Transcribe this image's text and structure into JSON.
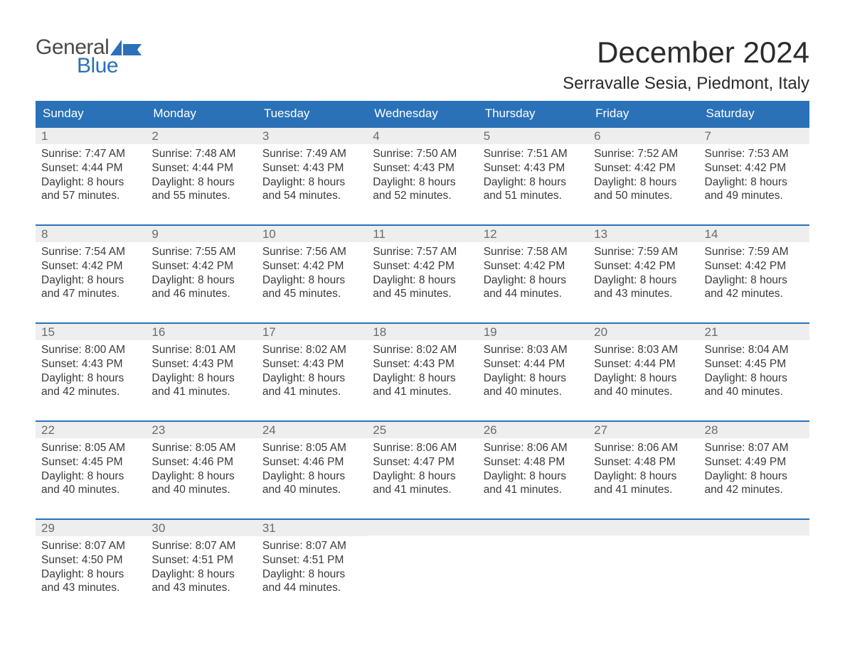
{
  "logo": {
    "text1": "General",
    "text2": "Blue",
    "accent": "#2a71b8",
    "gray": "#4a4a4a"
  },
  "title": "December 2024",
  "location": "Serravalle Sesia, Piedmont, Italy",
  "header_bg": "#2a71b8",
  "daynum_bg": "#eeeeee",
  "dow": [
    "Sunday",
    "Monday",
    "Tuesday",
    "Wednesday",
    "Thursday",
    "Friday",
    "Saturday"
  ],
  "weeks": [
    [
      {
        "n": "1",
        "sr": "7:47 AM",
        "ss": "4:44 PM",
        "dl": "8 hours and 57 minutes."
      },
      {
        "n": "2",
        "sr": "7:48 AM",
        "ss": "4:44 PM",
        "dl": "8 hours and 55 minutes."
      },
      {
        "n": "3",
        "sr": "7:49 AM",
        "ss": "4:43 PM",
        "dl": "8 hours and 54 minutes."
      },
      {
        "n": "4",
        "sr": "7:50 AM",
        "ss": "4:43 PM",
        "dl": "8 hours and 52 minutes."
      },
      {
        "n": "5",
        "sr": "7:51 AM",
        "ss": "4:43 PM",
        "dl": "8 hours and 51 minutes."
      },
      {
        "n": "6",
        "sr": "7:52 AM",
        "ss": "4:42 PM",
        "dl": "8 hours and 50 minutes."
      },
      {
        "n": "7",
        "sr": "7:53 AM",
        "ss": "4:42 PM",
        "dl": "8 hours and 49 minutes."
      }
    ],
    [
      {
        "n": "8",
        "sr": "7:54 AM",
        "ss": "4:42 PM",
        "dl": "8 hours and 47 minutes."
      },
      {
        "n": "9",
        "sr": "7:55 AM",
        "ss": "4:42 PM",
        "dl": "8 hours and 46 minutes."
      },
      {
        "n": "10",
        "sr": "7:56 AM",
        "ss": "4:42 PM",
        "dl": "8 hours and 45 minutes."
      },
      {
        "n": "11",
        "sr": "7:57 AM",
        "ss": "4:42 PM",
        "dl": "8 hours and 45 minutes."
      },
      {
        "n": "12",
        "sr": "7:58 AM",
        "ss": "4:42 PM",
        "dl": "8 hours and 44 minutes."
      },
      {
        "n": "13",
        "sr": "7:59 AM",
        "ss": "4:42 PM",
        "dl": "8 hours and 43 minutes."
      },
      {
        "n": "14",
        "sr": "7:59 AM",
        "ss": "4:42 PM",
        "dl": "8 hours and 42 minutes."
      }
    ],
    [
      {
        "n": "15",
        "sr": "8:00 AM",
        "ss": "4:43 PM",
        "dl": "8 hours and 42 minutes."
      },
      {
        "n": "16",
        "sr": "8:01 AM",
        "ss": "4:43 PM",
        "dl": "8 hours and 41 minutes."
      },
      {
        "n": "17",
        "sr": "8:02 AM",
        "ss": "4:43 PM",
        "dl": "8 hours and 41 minutes."
      },
      {
        "n": "18",
        "sr": "8:02 AM",
        "ss": "4:43 PM",
        "dl": "8 hours and 41 minutes."
      },
      {
        "n": "19",
        "sr": "8:03 AM",
        "ss": "4:44 PM",
        "dl": "8 hours and 40 minutes."
      },
      {
        "n": "20",
        "sr": "8:03 AM",
        "ss": "4:44 PM",
        "dl": "8 hours and 40 minutes."
      },
      {
        "n": "21",
        "sr": "8:04 AM",
        "ss": "4:45 PM",
        "dl": "8 hours and 40 minutes."
      }
    ],
    [
      {
        "n": "22",
        "sr": "8:05 AM",
        "ss": "4:45 PM",
        "dl": "8 hours and 40 minutes."
      },
      {
        "n": "23",
        "sr": "8:05 AM",
        "ss": "4:46 PM",
        "dl": "8 hours and 40 minutes."
      },
      {
        "n": "24",
        "sr": "8:05 AM",
        "ss": "4:46 PM",
        "dl": "8 hours and 40 minutes."
      },
      {
        "n": "25",
        "sr": "8:06 AM",
        "ss": "4:47 PM",
        "dl": "8 hours and 41 minutes."
      },
      {
        "n": "26",
        "sr": "8:06 AM",
        "ss": "4:48 PM",
        "dl": "8 hours and 41 minutes."
      },
      {
        "n": "27",
        "sr": "8:06 AM",
        "ss": "4:48 PM",
        "dl": "8 hours and 41 minutes."
      },
      {
        "n": "28",
        "sr": "8:07 AM",
        "ss": "4:49 PM",
        "dl": "8 hours and 42 minutes."
      }
    ],
    [
      {
        "n": "29",
        "sr": "8:07 AM",
        "ss": "4:50 PM",
        "dl": "8 hours and 43 minutes."
      },
      {
        "n": "30",
        "sr": "8:07 AM",
        "ss": "4:51 PM",
        "dl": "8 hours and 43 minutes."
      },
      {
        "n": "31",
        "sr": "8:07 AM",
        "ss": "4:51 PM",
        "dl": "8 hours and 44 minutes."
      },
      null,
      null,
      null,
      null
    ]
  ],
  "labels": {
    "sunrise": "Sunrise:",
    "sunset": "Sunset:",
    "daylight": "Daylight:"
  }
}
